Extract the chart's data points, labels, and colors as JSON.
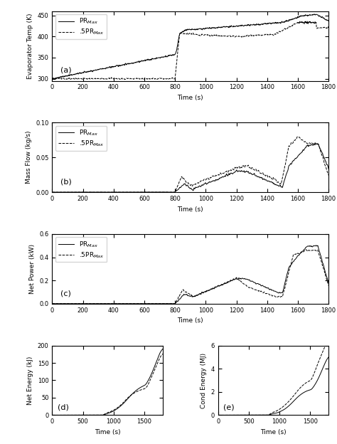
{
  "panel_a": {
    "label": "(a)",
    "ylabel": "Evaporator Temp (K)",
    "xlabel": "Time (s)",
    "ylim": [
      295,
      460
    ],
    "yticks": [
      300,
      350,
      400,
      450
    ],
    "xlim": [
      0,
      1800
    ],
    "xticks": [
      0,
      200,
      400,
      600,
      800,
      1000,
      1200,
      1400,
      1600,
      1800
    ]
  },
  "panel_b": {
    "label": "(b)",
    "ylabel": "Mass Flow (kg/s)",
    "xlabel": "Time (s)",
    "ylim": [
      0,
      0.1
    ],
    "yticks": [
      0,
      0.05,
      0.1
    ],
    "xlim": [
      0,
      1800
    ],
    "xticks": [
      0,
      200,
      400,
      600,
      800,
      1000,
      1200,
      1400,
      1600,
      1800
    ]
  },
  "panel_c": {
    "label": "(c)",
    "ylabel": "Net Power (kW)",
    "xlabel": "Time (s)",
    "ylim": [
      0,
      0.6
    ],
    "yticks": [
      0,
      0.2,
      0.4,
      0.6
    ],
    "xlim": [
      0,
      1800
    ],
    "xticks": [
      0,
      200,
      400,
      600,
      800,
      1000,
      1200,
      1400,
      1600,
      1800
    ]
  },
  "panel_d": {
    "label": "(d)",
    "ylabel": "Net Energy (kJ)",
    "xlabel": "Time (s)",
    "ylim": [
      0,
      200
    ],
    "yticks": [
      0,
      50,
      100,
      150,
      200
    ],
    "xlim": [
      0,
      1800
    ],
    "xticks": [
      0,
      500,
      1000,
      1500
    ]
  },
  "panel_e": {
    "label": "(e)",
    "ylabel": "Cond Energy (MJ)",
    "xlabel": "Time (s)",
    "ylim": [
      0,
      6
    ],
    "yticks": [
      0,
      2,
      4,
      6
    ],
    "xlim": [
      0,
      1800
    ],
    "xticks": [
      0,
      500,
      1000,
      1500
    ]
  },
  "legend_solid": "PR$_{Max}$",
  "legend_dashed": ".5PR$_{Max}$",
  "line_color": "#000000",
  "bg_color": "#ffffff"
}
